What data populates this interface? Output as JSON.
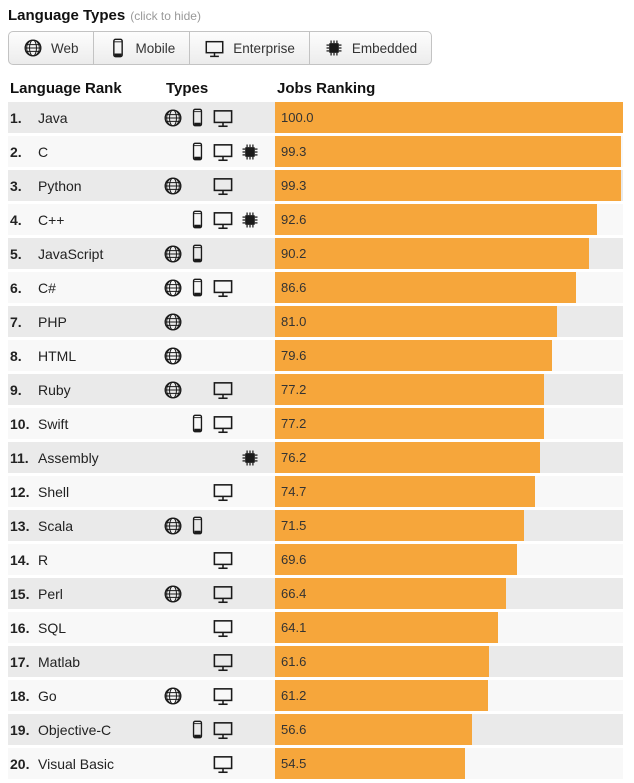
{
  "header": {
    "title": "Language Types",
    "subtitle": "(click to hide)"
  },
  "filters": [
    {
      "label": "Web",
      "icon": "globe-icon"
    },
    {
      "label": "Mobile",
      "icon": "smartphone-icon"
    },
    {
      "label": "Enterprise",
      "icon": "monitor-icon"
    },
    {
      "label": "Embedded",
      "icon": "chip-icon"
    }
  ],
  "table": {
    "col_language_rank": "Language Rank",
    "col_types": "Types",
    "col_jobs": "Jobs Ranking"
  },
  "colors": {
    "bar": "#F6A63B",
    "row_odd": "#EAEAEA",
    "row_even": "#F8F8F8"
  },
  "chart_data": {
    "type": "bar",
    "orientation": "horizontal",
    "title": "Jobs Ranking",
    "xlabel": "Jobs Ranking",
    "xlim": [
      0,
      100
    ],
    "grid": false,
    "legend": "none",
    "categories": [
      "Java",
      "C",
      "Python",
      "C++",
      "JavaScript",
      "C#",
      "PHP",
      "HTML",
      "Ruby",
      "Swift",
      "Assembly",
      "Shell",
      "Scala",
      "R",
      "Perl",
      "SQL",
      "Matlab",
      "Go",
      "Objective-C",
      "Visual Basic"
    ],
    "values": [
      100.0,
      99.3,
      99.3,
      92.6,
      90.2,
      86.6,
      81.0,
      79.6,
      77.2,
      77.2,
      76.2,
      74.7,
      71.5,
      69.6,
      66.4,
      64.1,
      61.6,
      61.2,
      56.6,
      54.5
    ],
    "rows": [
      {
        "rank": "1.",
        "language": "Java",
        "types": [
          "web",
          "mobile",
          "enterprise"
        ],
        "value": 100.0,
        "display": "100.0"
      },
      {
        "rank": "2.",
        "language": "C",
        "types": [
          "mobile",
          "enterprise",
          "embedded"
        ],
        "value": 99.3,
        "display": "99.3"
      },
      {
        "rank": "3.",
        "language": "Python",
        "types": [
          "web",
          "enterprise"
        ],
        "value": 99.3,
        "display": "99.3"
      },
      {
        "rank": "4.",
        "language": "C++",
        "types": [
          "mobile",
          "enterprise",
          "embedded"
        ],
        "value": 92.6,
        "display": "92.6"
      },
      {
        "rank": "5.",
        "language": "JavaScript",
        "types": [
          "web",
          "mobile"
        ],
        "value": 90.2,
        "display": "90.2"
      },
      {
        "rank": "6.",
        "language": "C#",
        "types": [
          "web",
          "mobile",
          "enterprise"
        ],
        "value": 86.6,
        "display": "86.6"
      },
      {
        "rank": "7.",
        "language": "PHP",
        "types": [
          "web"
        ],
        "value": 81.0,
        "display": "81.0"
      },
      {
        "rank": "8.",
        "language": "HTML",
        "types": [
          "web"
        ],
        "value": 79.6,
        "display": "79.6"
      },
      {
        "rank": "9.",
        "language": "Ruby",
        "types": [
          "web",
          "enterprise"
        ],
        "value": 77.2,
        "display": "77.2"
      },
      {
        "rank": "10.",
        "language": "Swift",
        "types": [
          "mobile",
          "enterprise"
        ],
        "value": 77.2,
        "display": "77.2"
      },
      {
        "rank": "11.",
        "language": "Assembly",
        "types": [
          "embedded"
        ],
        "value": 76.2,
        "display": "76.2"
      },
      {
        "rank": "12.",
        "language": "Shell",
        "types": [
          "enterprise"
        ],
        "value": 74.7,
        "display": "74.7"
      },
      {
        "rank": "13.",
        "language": "Scala",
        "types": [
          "web",
          "mobile"
        ],
        "value": 71.5,
        "display": "71.5"
      },
      {
        "rank": "14.",
        "language": "R",
        "types": [
          "enterprise"
        ],
        "value": 69.6,
        "display": "69.6"
      },
      {
        "rank": "15.",
        "language": "Perl",
        "types": [
          "web",
          "enterprise"
        ],
        "value": 66.4,
        "display": "66.4"
      },
      {
        "rank": "16.",
        "language": "SQL",
        "types": [
          "enterprise"
        ],
        "value": 64.1,
        "display": "64.1"
      },
      {
        "rank": "17.",
        "language": "Matlab",
        "types": [
          "enterprise"
        ],
        "value": 61.6,
        "display": "61.6"
      },
      {
        "rank": "18.",
        "language": "Go",
        "types": [
          "web",
          "enterprise"
        ],
        "value": 61.2,
        "display": "61.2"
      },
      {
        "rank": "19.",
        "language": "Objective-C",
        "types": [
          "mobile",
          "enterprise"
        ],
        "value": 56.6,
        "display": "56.6"
      },
      {
        "rank": "20.",
        "language": "Visual Basic",
        "types": [
          "enterprise"
        ],
        "value": 54.5,
        "display": "54.5"
      }
    ]
  }
}
